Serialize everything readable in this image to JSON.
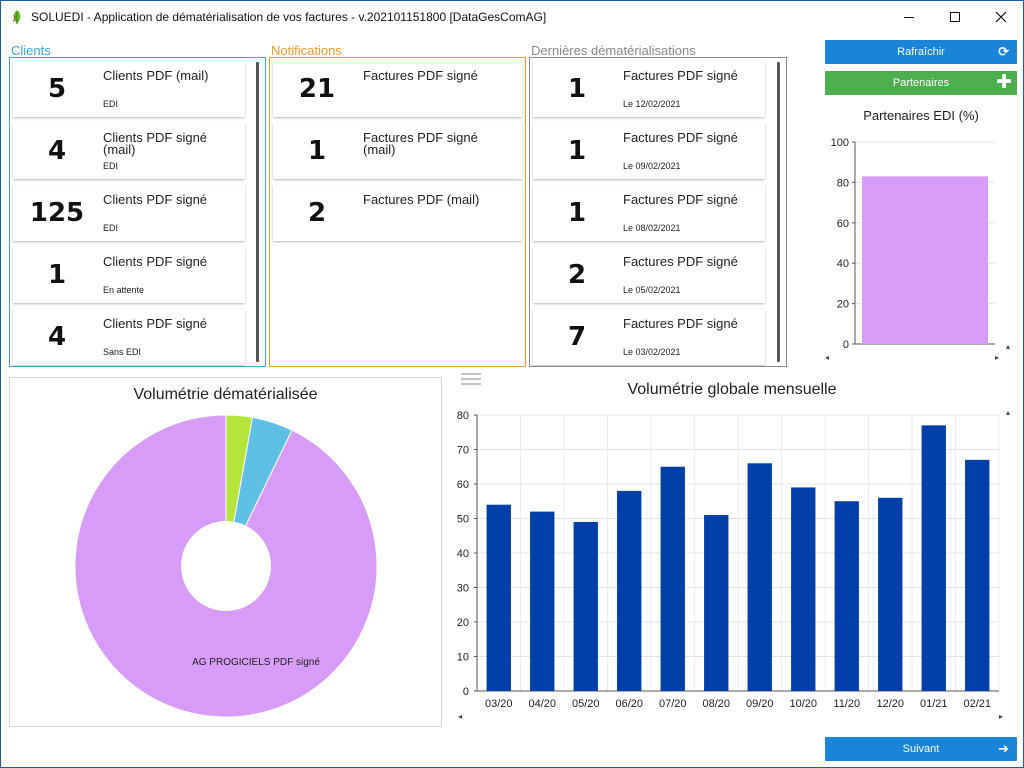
{
  "window": {
    "title": "SOLUEDI - Application de dématérialisation de vos factures - v.202101151800 [DataGesComAG]"
  },
  "clients": {
    "title": "Clients",
    "color": "#3ea6d8",
    "items": [
      {
        "count": "5",
        "title": "Clients PDF (mail)",
        "sub": "EDI"
      },
      {
        "count": "4",
        "title": "Clients PDF signé (mail)",
        "sub": "EDI"
      },
      {
        "count": "125",
        "title": "Clients PDF signé",
        "sub": "EDI"
      },
      {
        "count": "1",
        "title": "Clients PDF signé",
        "sub": "En attente"
      },
      {
        "count": "4",
        "title": "Clients PDF signé",
        "sub": "Sans EDI"
      }
    ]
  },
  "notifications": {
    "title": "Notifications",
    "color": "#ef9a2a",
    "items": [
      {
        "count": "21",
        "title": "Factures PDF signé"
      },
      {
        "count": "1",
        "title": "Factures PDF signé (mail)"
      },
      {
        "count": "2",
        "title": "Factures PDF (mail)"
      }
    ]
  },
  "recent": {
    "title": "Dernières dématérialisations",
    "color": "#888888",
    "items": [
      {
        "count": "1",
        "title": "Factures PDF signé",
        "sub": "Le 12/02/2021"
      },
      {
        "count": "1",
        "title": "Factures PDF signé",
        "sub": "Le 09/02/2021"
      },
      {
        "count": "1",
        "title": "Factures PDF signé",
        "sub": "Le 08/02/2021"
      },
      {
        "count": "2",
        "title": "Factures PDF signé",
        "sub": "Le 05/02/2021"
      },
      {
        "count": "7",
        "title": "Factures PDF signé",
        "sub": "Le 03/02/2021"
      }
    ]
  },
  "buttons": {
    "refresh_label": "Rafraîchir",
    "refresh_icon": "refresh-icon",
    "refresh_color": "#1a84d6",
    "partners_label": "Partenaires",
    "partners_icon": "plus-icon",
    "partners_color": "#4cae4c",
    "next_label": "Suivant",
    "next_icon": "arrow-right-icon",
    "next_color": "#1a84d6"
  },
  "chart_data": [
    {
      "type": "bar",
      "title": "Partenaires EDI (%)",
      "categories": [
        ""
      ],
      "values": [
        83
      ],
      "ylim": [
        0,
        100
      ],
      "yticks": [
        "0",
        "20",
        "40",
        "60",
        "80",
        "100"
      ],
      "bar_color": "#d79cf7",
      "grid": true
    },
    {
      "type": "pie",
      "title": "Volumétrie dématérialisée",
      "donut": true,
      "slices": [
        {
          "label": "AG PROGICIELS PDF signé",
          "value": 92.8,
          "color": "#d79cf7"
        },
        {
          "label": "",
          "value": 4.4,
          "color": "#5fc0e6"
        },
        {
          "label": "",
          "value": 2.8,
          "color": "#b5e53a"
        }
      ]
    },
    {
      "type": "bar",
      "title": "Volumétrie globale mensuelle",
      "categories": [
        "03/20",
        "04/20",
        "05/20",
        "06/20",
        "07/20",
        "08/20",
        "09/20",
        "10/20",
        "11/20",
        "12/20",
        "01/21",
        "02/21"
      ],
      "values": [
        54,
        52,
        49,
        58,
        65,
        51,
        66,
        59,
        55,
        56,
        77,
        67
      ],
      "ylim": [
        0,
        80
      ],
      "yticks": [
        "0",
        "10",
        "20",
        "30",
        "40",
        "50",
        "60",
        "70",
        "80"
      ],
      "bar_color": "#003fa8",
      "grid": true
    }
  ]
}
